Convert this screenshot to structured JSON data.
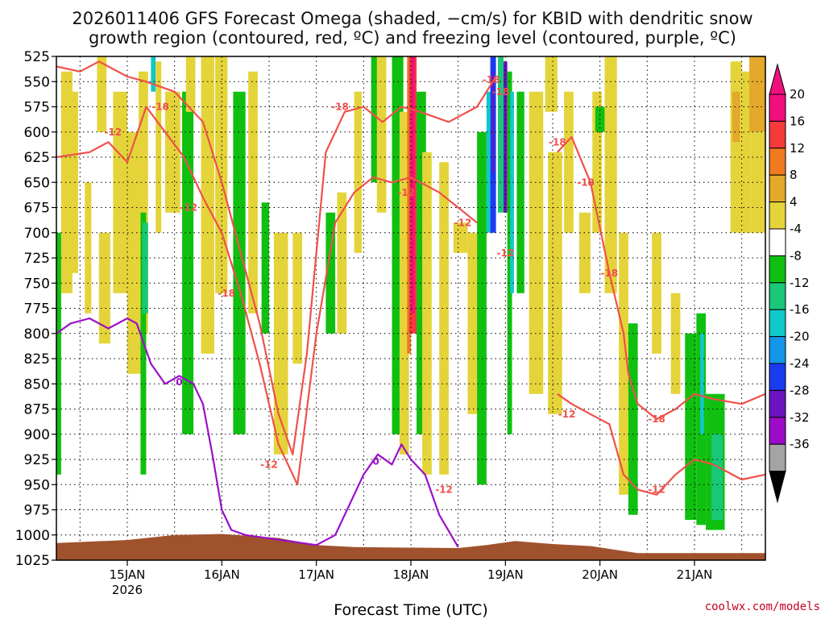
{
  "chart_data": {
    "type": "heatmap",
    "title_line1": "2026011406 GFS Forecast Omega (shaded, −cm/s) for KBID with dendritic snow",
    "title_line2": "growth region (contoured, red, ºC) and freezing level (contoured, purple, ºC)",
    "xlabel": "Forecast Time (UTC)",
    "ylabel": "",
    "credit": "coolwx.com/models",
    "y_ticks": [
      "525",
      "550",
      "575",
      "600",
      "625",
      "650",
      "675",
      "700",
      "725",
      "750",
      "775",
      "800",
      "825",
      "850",
      "875",
      "900",
      "925",
      "950",
      "975",
      "1000",
      "1025"
    ],
    "x_ticks": [
      {
        "label": "15JAN",
        "sub": "2026",
        "day": 15
      },
      {
        "label": "16JAN",
        "sub": "",
        "day": 16
      },
      {
        "label": "17JAN",
        "sub": "",
        "day": 17
      },
      {
        "label": "18JAN",
        "sub": "",
        "day": 18
      },
      {
        "label": "19JAN",
        "sub": "",
        "day": 19
      },
      {
        "label": "20JAN",
        "sub": "",
        "day": 20
      },
      {
        "label": "21JAN",
        "sub": "",
        "day": 21
      }
    ],
    "xlim_days": [
      14.25,
      21.75
    ],
    "ylim_hpa": [
      525,
      1025
    ],
    "colorbar": {
      "labels": [
        "20",
        "16",
        "12",
        "8",
        "4",
        "-4",
        "-8",
        "-12",
        "-16",
        "-20",
        "-24",
        "-28",
        "-32",
        "-36"
      ],
      "colors": [
        "#f0107c",
        "#f43a3a",
        "#f07a1e",
        "#e4a82a",
        "#e4d43a",
        "#ffffff",
        "#10c010",
        "#18c878",
        "#10c8c8",
        "#1496ea",
        "#1a3cf0",
        "#6a14c0",
        "#9c0cc8",
        "#a4a4a4"
      ]
    },
    "contour_labels_red": [
      "-12",
      "-18",
      "-12",
      "-18",
      "-18",
      "-12",
      "-12",
      "-18",
      "-12",
      "-18",
      "-18",
      "-18",
      "-12",
      "-18",
      "-12",
      "-12",
      "-18",
      "-12"
    ],
    "contour_labels_purple": [
      "0",
      "0"
    ],
    "series": [
      {
        "name": "-12C dendritic growth level (upper)",
        "color": "#f0504a",
        "points": [
          [
            14.25,
            625
          ],
          [
            14.6,
            620
          ],
          [
            14.8,
            610
          ],
          [
            15.0,
            630
          ],
          [
            15.2,
            575
          ],
          [
            15.4,
            600
          ],
          [
            15.6,
            625
          ],
          [
            15.8,
            665
          ],
          [
            16.0,
            700
          ],
          [
            16.2,
            760
          ],
          [
            16.4,
            830
          ],
          [
            16.6,
            910
          ],
          [
            16.8,
            950
          ],
          [
            17.0,
            800
          ],
          [
            17.2,
            690
          ],
          [
            17.4,
            660
          ],
          [
            17.6,
            645
          ],
          [
            17.8,
            650
          ],
          [
            18.0,
            645
          ],
          [
            18.3,
            660
          ],
          [
            18.5,
            675
          ],
          [
            18.7,
            690
          ]
        ]
      },
      {
        "name": "-18C dendritic growth level (upper)",
        "color": "#f0504a",
        "points": [
          [
            14.25,
            535
          ],
          [
            14.5,
            540
          ],
          [
            14.7,
            530
          ],
          [
            15.0,
            545
          ],
          [
            15.2,
            550
          ],
          [
            15.5,
            560
          ],
          [
            15.8,
            590
          ],
          [
            16.0,
            650
          ],
          [
            16.2,
            720
          ],
          [
            16.4,
            790
          ],
          [
            16.6,
            880
          ],
          [
            16.75,
            920
          ],
          [
            16.9,
            820
          ],
          [
            17.1,
            620
          ],
          [
            17.3,
            580
          ],
          [
            17.5,
            575
          ],
          [
            17.7,
            590
          ],
          [
            17.9,
            575
          ],
          [
            18.1,
            580
          ],
          [
            18.4,
            590
          ],
          [
            18.7,
            575
          ],
          [
            18.9,
            545
          ]
        ]
      },
      {
        "name": "-18C lower (20-21JAN)",
        "color": "#f0504a",
        "points": [
          [
            19.55,
            620
          ],
          [
            19.7,
            605
          ],
          [
            19.9,
            650
          ],
          [
            20.1,
            740
          ],
          [
            20.25,
            800
          ],
          [
            20.3,
            840
          ],
          [
            20.4,
            870
          ],
          [
            20.6,
            885
          ],
          [
            20.8,
            875
          ],
          [
            21.0,
            860
          ],
          [
            21.2,
            865
          ],
          [
            21.5,
            870
          ],
          [
            21.75,
            860
          ]
        ]
      },
      {
        "name": "-12C lower (20-21JAN)",
        "color": "#f0504a",
        "points": [
          [
            19.55,
            860
          ],
          [
            19.7,
            870
          ],
          [
            19.9,
            880
          ],
          [
            20.1,
            890
          ],
          [
            20.25,
            940
          ],
          [
            20.4,
            955
          ],
          [
            20.6,
            960
          ],
          [
            20.8,
            940
          ],
          [
            21.0,
            925
          ],
          [
            21.2,
            930
          ],
          [
            21.5,
            945
          ],
          [
            21.75,
            940
          ]
        ]
      },
      {
        "name": "0C freezing level",
        "color": "#9a10c8",
        "points": [
          [
            14.25,
            800
          ],
          [
            14.4,
            790
          ],
          [
            14.6,
            785
          ],
          [
            14.8,
            795
          ],
          [
            15.0,
            785
          ],
          [
            15.1,
            790
          ],
          [
            15.25,
            830
          ],
          [
            15.4,
            850
          ],
          [
            15.55,
            842
          ],
          [
            15.7,
            850
          ],
          [
            15.8,
            870
          ],
          [
            15.9,
            920
          ],
          [
            16.0,
            975
          ],
          [
            16.1,
            995
          ],
          [
            16.25,
            1000
          ],
          [
            17.0,
            1010
          ],
          [
            17.2,
            1000
          ],
          [
            17.35,
            970
          ],
          [
            17.5,
            940
          ],
          [
            17.65,
            920
          ],
          [
            17.8,
            930
          ],
          [
            17.9,
            910
          ],
          [
            18.0,
            925
          ],
          [
            18.15,
            940
          ],
          [
            18.3,
            980
          ],
          [
            18.5,
            1012
          ]
        ]
      }
    ]
  }
}
